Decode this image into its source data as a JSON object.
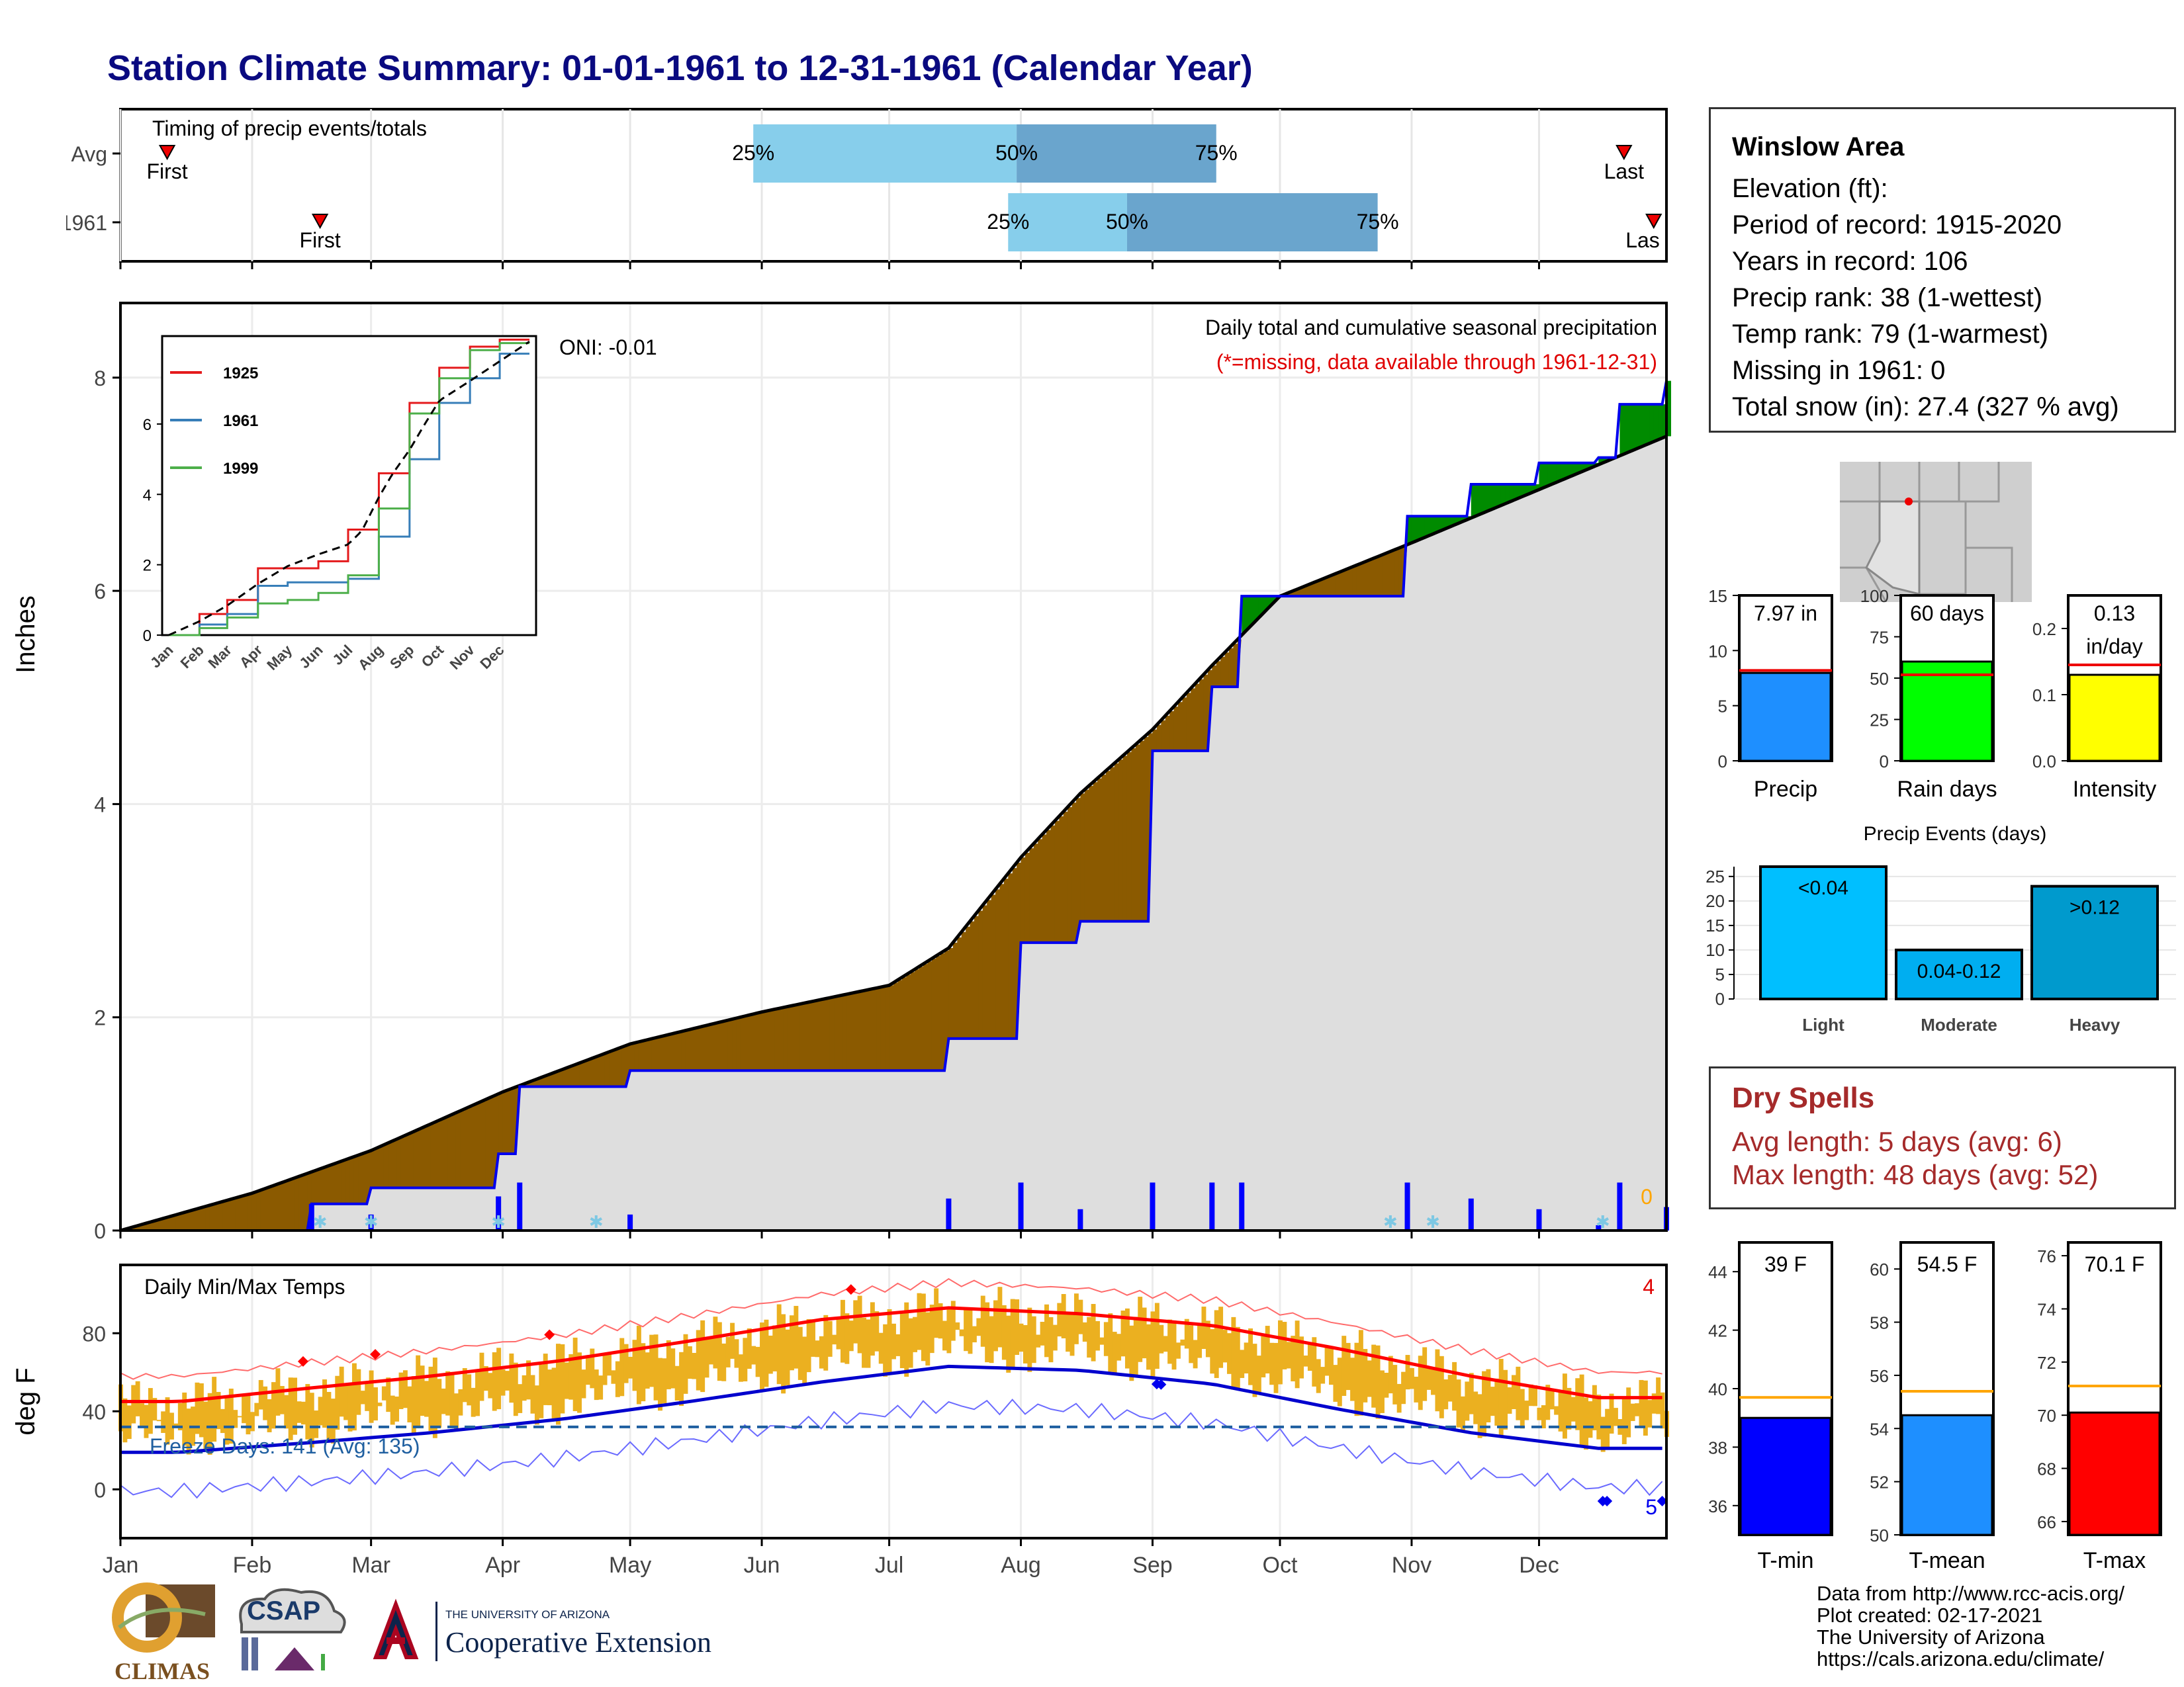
{
  "page": {
    "title": "Station Climate Summary: 01-01-1961 to 12-31-1961 (Calendar Year)"
  },
  "timing_panel": {
    "label": "Timing of precip events/totals",
    "rows": [
      {
        "name": "Avg",
        "first_doy": 12,
        "last_doy": 355,
        "p25_doy": 150,
        "p50_doy": 212,
        "p75_doy": 259,
        "labels": {
          "first": "First",
          "last": "Last",
          "p25": "25%",
          "p50": "50%",
          "p75": "75%"
        }
      },
      {
        "name": "1961",
        "first_doy": 48,
        "last_doy": 362,
        "p25_doy": 210,
        "p50_doy": 238,
        "p75_doy": 297,
        "labels": {
          "first": "First",
          "last": "Las",
          "p25": "25%",
          "p50": "50%",
          "p75": "75%"
        }
      }
    ]
  },
  "precip_panel": {
    "ylabel": "Inches",
    "oni": "ONI: -0.01",
    "caption": "Daily total and cumulative seasonal precipitation",
    "missing_note": "(*=missing, data available through 1961-12-31)",
    "missing_count": "0",
    "yticks": [
      "0",
      "2",
      "4",
      "6",
      "8"
    ],
    "inset": {
      "legend": [
        "1925",
        "1961",
        "1999"
      ],
      "yticks": [
        "0",
        "2",
        "4",
        "6"
      ],
      "months": [
        "Jan",
        "Feb",
        "Mar",
        "Apr",
        "May",
        "Jun",
        "Jul",
        "Aug",
        "Sep",
        "Oct",
        "Nov",
        "Dec"
      ]
    }
  },
  "temp_panel": {
    "ylabel": "deg F",
    "label": "Daily Min/Max Temps",
    "freeze_text": "Freeze Days: 141 (Avg: 135)",
    "record_high_count": "4",
    "record_low_count": "5",
    "yticks": [
      "0",
      "40",
      "80"
    ]
  },
  "months": [
    "Jan",
    "Feb",
    "Mar",
    "Apr",
    "May",
    "Jun",
    "Jul",
    "Aug",
    "Sep",
    "Oct",
    "Nov",
    "Dec"
  ],
  "info": {
    "station": "Winslow Area",
    "elevation": "Elevation (ft):",
    "period": "Period of record: 1915-2020",
    "years": "Years in record: 106",
    "precip_rank": "Precip rank: 38 (1-wettest)",
    "temp_rank": "Temp rank: 79 (1-warmest)",
    "missing": "Missing in 1961: 0",
    "snow": "Total snow (in): 27.4 (327 % avg)"
  },
  "precip_bars": [
    {
      "name": "Precip",
      "value_label": "7.97 in",
      "value": 7.97,
      "avg": 8.2,
      "ymax": 15,
      "yticks": [
        "0",
        "5",
        "10",
        "15"
      ],
      "tickvals": [
        0,
        5,
        10,
        15
      ],
      "color": "#1e8fff"
    },
    {
      "name": "Rain days",
      "value_label": "60 days",
      "value": 60,
      "avg": 52,
      "ymax": 100,
      "yticks": [
        "0",
        "25",
        "50",
        "75",
        "100"
      ],
      "tickvals": [
        0,
        25,
        50,
        75,
        100
      ],
      "color": "#00ff00"
    },
    {
      "name": "Intensity",
      "value_label": "0.13\nin/day",
      "value": 0.13,
      "avg": 0.145,
      "ymax": 0.25,
      "yticks": [
        "0.0",
        "0.1",
        "0.2"
      ],
      "tickvals": [
        0,
        0.1,
        0.2
      ],
      "color": "#ffff00"
    }
  ],
  "events": {
    "title": "Precip Events (days)",
    "yticks": [
      "0",
      "5",
      "10",
      "15",
      "20",
      "25"
    ],
    "bars": [
      {
        "name": "Light",
        "label": "<0.04",
        "value": 27,
        "color": "#00bfff"
      },
      {
        "name": "Moderate",
        "label": "0.04-0.12",
        "value": 10,
        "color": "#00aef0"
      },
      {
        "name": "Heavy",
        "label": ">0.12",
        "value": 23,
        "color": "#009acd"
      }
    ]
  },
  "dry_spells": {
    "title": "Dry Spells",
    "avg": "Avg length: 5 days (avg: 6)",
    "max": "Max length: 48 days (avg: 52)"
  },
  "temp_bars": [
    {
      "name": "T-min",
      "value_label": "39 F",
      "value": 39,
      "avg": 39.7,
      "ymin": 35,
      "ymax": 45,
      "yticks": [
        "36",
        "38",
        "40",
        "42",
        "44"
      ],
      "tickvals": [
        36,
        38,
        40,
        42,
        44
      ],
      "color": "#0000ff"
    },
    {
      "name": "T-mean",
      "value_label": "54.5 F",
      "value": 54.5,
      "avg": 55.4,
      "ymin": 50,
      "ymax": 61,
      "yticks": [
        "50",
        "52",
        "54",
        "56",
        "58",
        "60"
      ],
      "tickvals": [
        50,
        52,
        54,
        56,
        58,
        60
      ],
      "color": "#1e8fff"
    },
    {
      "name": "T-max",
      "value_label": "70.1 F",
      "value": 70.1,
      "avg": 71.1,
      "ymin": 65.5,
      "ymax": 76.5,
      "yticks": [
        "66",
        "68",
        "70",
        "72",
        "74",
        "76"
      ],
      "tickvals": [
        66,
        68,
        70,
        72,
        74,
        76
      ],
      "color": "#ff0000"
    }
  ],
  "footer": {
    "line1": "Data from http://www.rcc-acis.org/",
    "line2": "Plot created: 02-17-2021",
    "line3": "The University of Arizona",
    "line4": "https://cals.arizona.edu/climate/",
    "climas": "CLIMAS",
    "csap": "CSAP",
    "ua_small": "THE UNIVERSITY OF ARIZONA",
    "ua_big": "Cooperative Extension"
  },
  "chart_data": [
    {
      "type": "area",
      "title": "Daily total and cumulative seasonal precipitation",
      "ylabel": "Inches",
      "ylim": [
        0,
        8.7
      ],
      "series": [
        {
          "name": "1961",
          "x": [
            "01-01",
            "02-15",
            "03-01",
            "03-31",
            "04-05",
            "05-01",
            "06-01",
            "07-01",
            "07-15",
            "08-01",
            "08-15",
            "09-01",
            "09-15",
            "09-22",
            "10-01",
            "10-31",
            "11-15",
            "12-01",
            "12-15",
            "12-20",
            "12-31"
          ],
          "values": [
            0,
            0.25,
            0.4,
            0.72,
            1.35,
            1.5,
            1.5,
            1.5,
            1.8,
            2.7,
            2.9,
            4.5,
            5.1,
            5.95,
            5.95,
            6.7,
            7.0,
            7.2,
            7.25,
            7.75,
            7.97
          ]
        },
        {
          "name": "Avg",
          "x": [
            "01-01",
            "02-01",
            "03-01",
            "04-01",
            "05-01",
            "06-01",
            "07-01",
            "07-15",
            "08-01",
            "08-15",
            "09-01",
            "09-15",
            "10-01",
            "11-01",
            "12-01",
            "12-31"
          ],
          "values": [
            0,
            0.35,
            0.75,
            1.3,
            1.75,
            2.05,
            2.3,
            2.65,
            3.5,
            4.1,
            4.7,
            5.3,
            5.95,
            6.45,
            6.95,
            7.45
          ]
        }
      ]
    },
    {
      "type": "line",
      "title": "Daily Min/Max Temps",
      "ylabel": "deg F",
      "ylim": [
        -25,
        115
      ],
      "x": [
        "Jan",
        "Feb",
        "Mar",
        "Apr",
        "May",
        "Jun",
        "Jul",
        "Aug",
        "Sep",
        "Oct",
        "Nov",
        "Dec"
      ],
      "series": [
        {
          "name": "Avg max",
          "values": [
            45,
            52,
            58,
            66,
            76,
            87,
            93,
            90,
            84,
            72,
            58,
            47
          ]
        },
        {
          "name": "Avg min",
          "values": [
            19,
            24,
            29,
            36,
            45,
            55,
            63,
            61,
            54,
            41,
            29,
            21
          ]
        }
      ]
    }
  ]
}
